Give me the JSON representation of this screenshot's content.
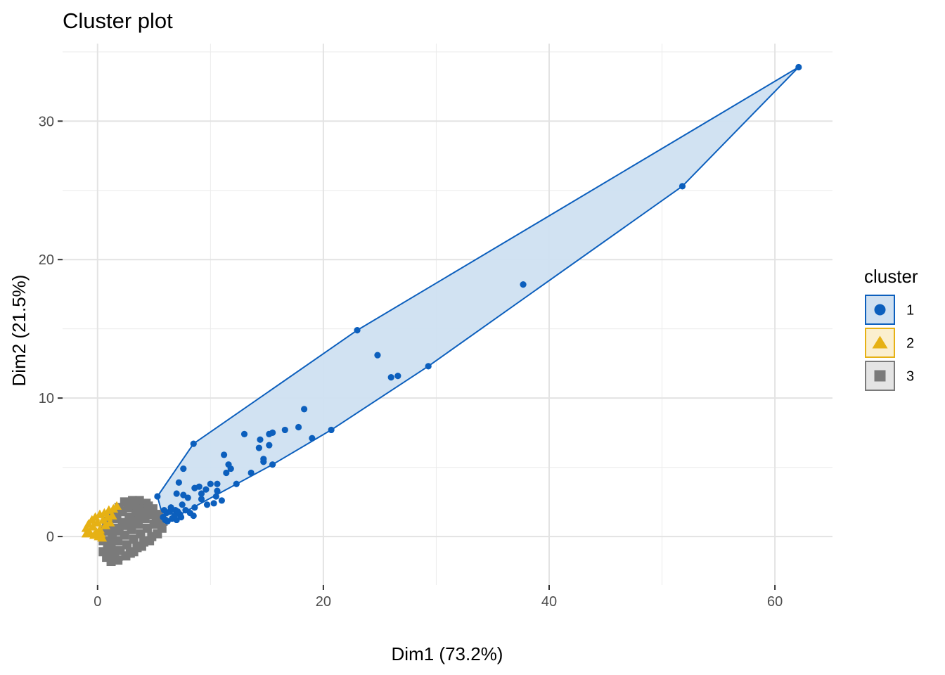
{
  "chart_data": {
    "type": "scatter",
    "title": "Cluster plot",
    "xlabel": "Dim1 (73.2%)",
    "ylabel": "Dim2 (21.5%)",
    "xlim": [
      -3.1,
      65.1
    ],
    "ylim": [
      -3.5,
      35.6
    ],
    "xticks": [
      0,
      20,
      40,
      60
    ],
    "yticks": [
      0,
      10,
      20,
      30
    ],
    "grid": true,
    "legend": {
      "title": "cluster",
      "position": "right",
      "entries": [
        {
          "label": "1",
          "shape": "circle",
          "color": "#0c5fbd",
          "fill": "#cfe0f1"
        },
        {
          "label": "2",
          "shape": "triangle",
          "color": "#e6b114",
          "fill": "#fbefcf"
        },
        {
          "label": "3",
          "shape": "square",
          "color": "#7a7a7a",
          "fill": "#e4e4e4"
        }
      ]
    },
    "series": [
      {
        "name": "1",
        "shape": "circle",
        "color": "#0c5fbd",
        "hull_fill": "#cfe0f1",
        "points": [
          [
            62.1,
            33.9
          ],
          [
            51.8,
            25.3
          ],
          [
            37.7,
            18.2
          ],
          [
            23.0,
            14.9
          ],
          [
            24.8,
            13.1
          ],
          [
            29.3,
            12.3
          ],
          [
            26.0,
            11.5
          ],
          [
            26.6,
            11.6
          ],
          [
            18.3,
            9.2
          ],
          [
            17.8,
            7.9
          ],
          [
            16.6,
            7.7
          ],
          [
            13.0,
            7.4
          ],
          [
            15.5,
            7.5
          ],
          [
            15.2,
            7.4
          ],
          [
            20.7,
            7.7
          ],
          [
            19.0,
            7.1
          ],
          [
            14.4,
            7.0
          ],
          [
            14.3,
            6.4
          ],
          [
            15.2,
            6.6
          ],
          [
            8.5,
            6.7
          ],
          [
            11.2,
            5.9
          ],
          [
            14.7,
            5.6
          ],
          [
            14.7,
            5.4
          ],
          [
            15.5,
            5.2
          ],
          [
            11.6,
            5.2
          ],
          [
            11.8,
            4.9
          ],
          [
            7.6,
            4.9
          ],
          [
            11.4,
            4.6
          ],
          [
            13.6,
            4.6
          ],
          [
            7.2,
            3.9
          ],
          [
            12.3,
            3.8
          ],
          [
            10.0,
            3.8
          ],
          [
            10.6,
            3.8
          ],
          [
            9.0,
            3.6
          ],
          [
            8.6,
            3.5
          ],
          [
            9.6,
            3.4
          ],
          [
            10.6,
            3.3
          ],
          [
            9.2,
            3.1
          ],
          [
            7.0,
            3.1
          ],
          [
            5.3,
            2.9
          ],
          [
            7.6,
            3.0
          ],
          [
            10.5,
            2.9
          ],
          [
            8.0,
            2.8
          ],
          [
            9.2,
            2.7
          ],
          [
            11.0,
            2.6
          ],
          [
            10.3,
            2.4
          ],
          [
            7.5,
            2.3
          ],
          [
            8.6,
            2.1
          ],
          [
            9.7,
            2.3
          ],
          [
            6.5,
            2.1
          ],
          [
            6.9,
            1.9
          ],
          [
            7.8,
            1.9
          ],
          [
            6.1,
            1.7
          ],
          [
            7.3,
            1.6
          ],
          [
            8.2,
            1.7
          ],
          [
            5.8,
            1.4
          ],
          [
            6.6,
            1.3
          ],
          [
            7.0,
            1.2
          ],
          [
            6.2,
            1.1
          ],
          [
            7.4,
            1.4
          ],
          [
            8.5,
            1.5
          ],
          [
            5.9,
            1.9
          ],
          [
            6.4,
            1.8
          ],
          [
            6.8,
            1.5
          ],
          [
            7.1,
            1.8
          ],
          [
            6.0,
            1.2
          ]
        ],
        "hull": [
          [
            62.1,
            33.9
          ],
          [
            51.8,
            25.3
          ],
          [
            29.3,
            12.3
          ],
          [
            20.7,
            7.7
          ],
          [
            15.5,
            5.2
          ],
          [
            6.2,
            1.1
          ],
          [
            5.8,
            1.4
          ],
          [
            5.3,
            2.9
          ],
          [
            8.5,
            6.7
          ],
          [
            23.0,
            14.9
          ]
        ]
      },
      {
        "name": "2",
        "shape": "triangle",
        "color": "#e6b114",
        "hull_fill": "#fbefcf",
        "points": [
          [
            -1.0,
            0.2
          ],
          [
            -1.0,
            0.6
          ],
          [
            -0.8,
            0.9
          ],
          [
            -0.5,
            1.2
          ],
          [
            -0.2,
            1.4
          ],
          [
            0.2,
            1.6
          ],
          [
            0.6,
            1.7
          ],
          [
            1.0,
            1.9
          ],
          [
            1.4,
            2.0
          ],
          [
            1.7,
            2.2
          ],
          [
            -0.7,
            0.3
          ],
          [
            -0.3,
            0.1
          ],
          [
            0.1,
            0.0
          ],
          [
            0.4,
            -0.1
          ],
          [
            -0.4,
            0.7
          ],
          [
            0.0,
            1.0
          ],
          [
            0.5,
            1.2
          ],
          [
            0.9,
            1.4
          ],
          [
            1.3,
            1.5
          ],
          [
            0.2,
            0.5
          ],
          [
            0.7,
            0.8
          ],
          [
            1.1,
            1.0
          ],
          [
            -0.1,
            0.3
          ],
          [
            0.3,
            0.2
          ]
        ],
        "hull": [
          [
            -1.0,
            0.2
          ],
          [
            -1.0,
            0.6
          ],
          [
            -0.5,
            1.2
          ],
          [
            1.0,
            1.9
          ],
          [
            1.8,
            2.2
          ],
          [
            0.8,
            0.1
          ],
          [
            0.1,
            -0.2
          ]
        ]
      },
      {
        "name": "3",
        "shape": "square",
        "color": "#7a7a7a",
        "hull_fill": "#e4e4e4",
        "points": [
          [
            0.5,
            -1.1
          ],
          [
            0.8,
            -1.5
          ],
          [
            1.2,
            -1.8
          ],
          [
            1.8,
            -1.7
          ],
          [
            2.5,
            -1.4
          ],
          [
            3.2,
            -1.1
          ],
          [
            3.9,
            -0.7
          ],
          [
            4.6,
            -0.3
          ],
          [
            5.3,
            0.2
          ],
          [
            5.7,
            0.6
          ],
          [
            5.8,
            1.1
          ],
          [
            5.4,
            1.6
          ],
          [
            4.9,
            2.0
          ],
          [
            4.3,
            2.4
          ],
          [
            3.7,
            2.6
          ],
          [
            3.1,
            2.6
          ],
          [
            2.4,
            2.5
          ],
          [
            1.9,
            2.1
          ],
          [
            1.4,
            1.6
          ],
          [
            1.0,
            1.1
          ],
          [
            0.7,
            0.4
          ],
          [
            0.5,
            -0.3
          ],
          [
            1.2,
            -0.8
          ],
          [
            1.8,
            -0.3
          ],
          [
            2.4,
            0.1
          ],
          [
            3.0,
            0.5
          ],
          [
            3.6,
            0.9
          ],
          [
            4.2,
            1.3
          ],
          [
            4.7,
            1.6
          ],
          [
            1.6,
            0.6
          ],
          [
            2.2,
            1.0
          ],
          [
            2.8,
            1.4
          ],
          [
            3.4,
            1.7
          ],
          [
            4.0,
            2.0
          ],
          [
            2.0,
            -1.0
          ],
          [
            2.6,
            -0.6
          ],
          [
            3.2,
            -0.2
          ],
          [
            3.8,
            0.2
          ],
          [
            4.4,
            0.6
          ],
          [
            5.0,
            0.9
          ],
          [
            1.3,
            0.1
          ],
          [
            1.9,
            0.4
          ],
          [
            2.5,
            0.8
          ],
          [
            3.1,
            1.1
          ],
          [
            3.7,
            1.4
          ],
          [
            4.3,
            1.8
          ],
          [
            1.1,
            -0.4
          ],
          [
            2.9,
            -1.2
          ],
          [
            3.5,
            -0.8
          ],
          [
            4.1,
            -0.4
          ],
          [
            4.8,
            0.0
          ],
          [
            2.2,
            1.8
          ],
          [
            2.7,
            2.1
          ],
          [
            3.3,
            2.3
          ],
          [
            0.9,
            -0.9
          ],
          [
            1.5,
            -1.3
          ],
          [
            4.5,
            2.2
          ],
          [
            5.2,
            1.3
          ],
          [
            0.8,
            0.7
          ],
          [
            1.7,
            1.3
          ]
        ],
        "hull": [
          [
            0.5,
            -1.1
          ],
          [
            0.8,
            -1.6
          ],
          [
            1.2,
            -1.9
          ],
          [
            2.0,
            -1.8
          ],
          [
            3.4,
            -1.1
          ],
          [
            4.6,
            -0.3
          ],
          [
            5.4,
            0.3
          ],
          [
            5.9,
            0.8
          ],
          [
            5.8,
            1.2
          ],
          [
            5.4,
            1.8
          ],
          [
            3.4,
            2.6
          ],
          [
            2.4,
            2.6
          ],
          [
            1.9,
            2.1
          ],
          [
            1.2,
            1.4
          ],
          [
            0.7,
            0.5
          ]
        ]
      }
    ]
  }
}
